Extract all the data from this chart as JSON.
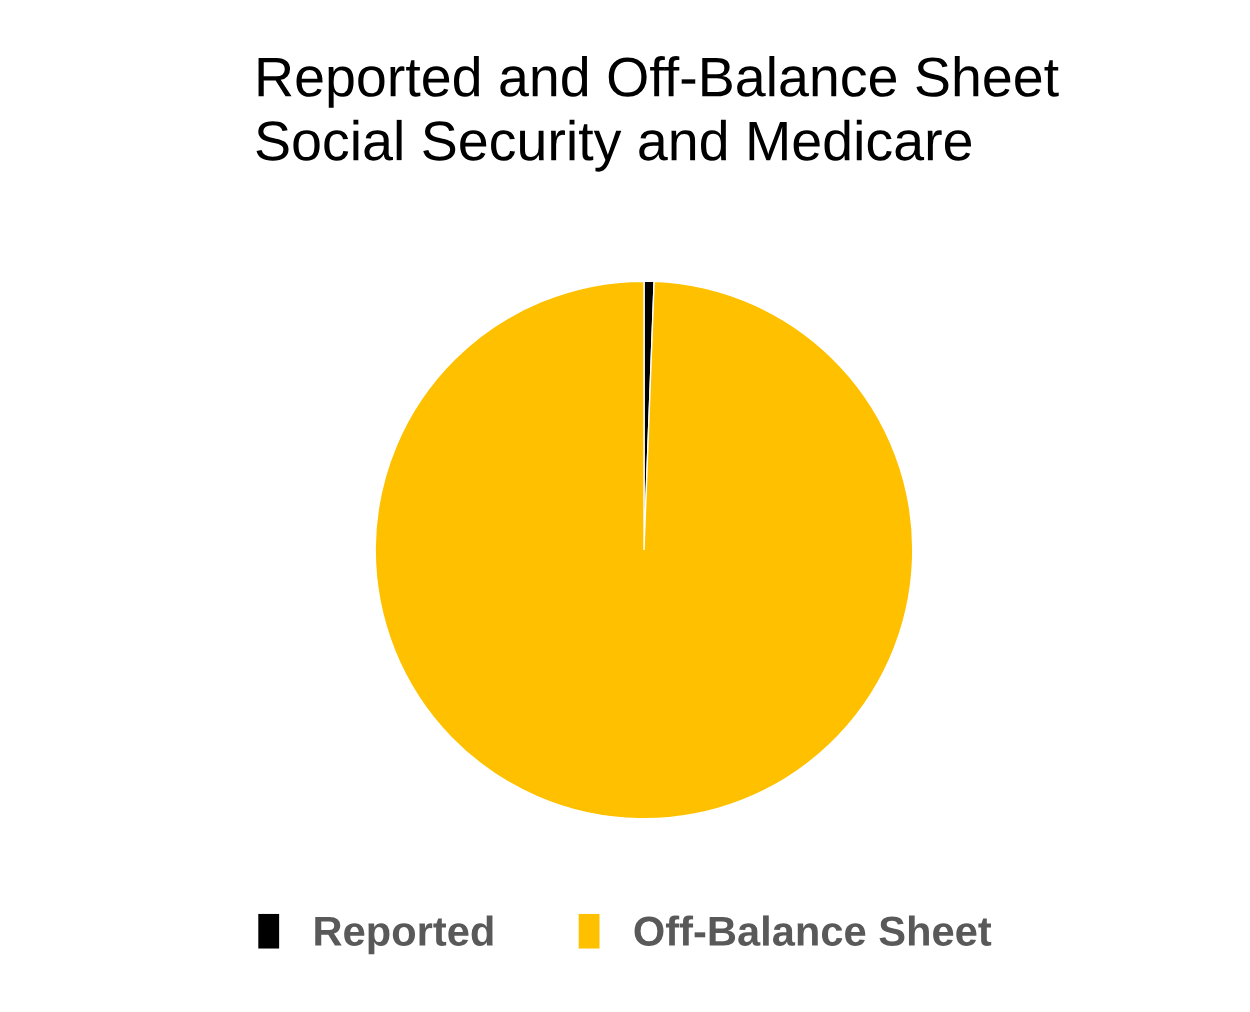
{
  "chart_data": {
    "type": "pie",
    "title": "Reported and Off-Balance Sheet\nSocial Security and Medicare",
    "categories": [
      "Reported",
      "Off-Balance Sheet"
    ],
    "values": [
      0.6,
      99.4
    ],
    "colors": [
      "#000000",
      "#ffc000"
    ],
    "legend": "bottom"
  }
}
